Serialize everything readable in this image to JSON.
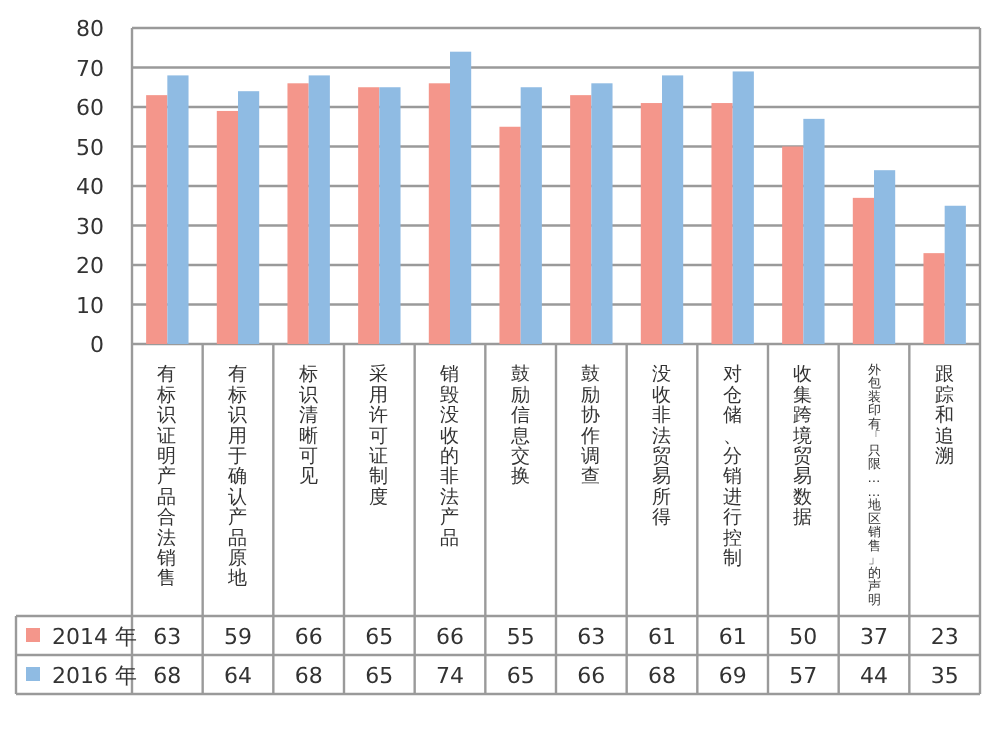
{
  "chart_data": {
    "type": "bar",
    "categories": [
      "有标识证明产品合法销售",
      "有标识用于确认产品原地",
      "标识清晰可见",
      "采用许可证制度",
      "销毁没收的非法产品",
      "鼓励信息交换",
      "鼓励协作调查",
      "没收非法贸易所得",
      "对仓储、分销进行控制",
      "收集跨境贸易数据",
      "外包装印有「只限……地区销售」的声明",
      "跟踪和追溯"
    ],
    "series": [
      {
        "name": "2014 年",
        "color": "#f4968b",
        "values": [
          63,
          59,
          66,
          65,
          66,
          55,
          63,
          61,
          61,
          50,
          37,
          23
        ]
      },
      {
        "name": "2016 年",
        "color": "#8fbbe3",
        "values": [
          68,
          64,
          68,
          65,
          74,
          65,
          66,
          68,
          69,
          57,
          44,
          35
        ]
      }
    ],
    "ylim": [
      0,
      80
    ],
    "yticks": [
      0,
      10,
      20,
      30,
      40,
      50,
      60,
      70,
      80
    ],
    "grid": "y",
    "legend": "bottom left",
    "data_labels": true
  }
}
